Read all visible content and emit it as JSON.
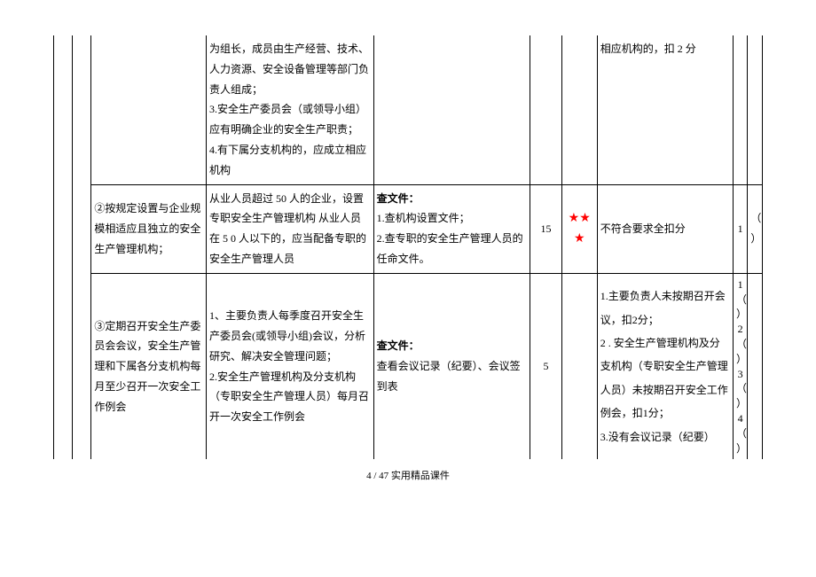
{
  "rows": [
    {
      "item": "",
      "detail": "为组长，成员由生产经营、技术、人力资源、安全设备管理等部门负责人组成；\n3.安全生产委员会（或领导小组）应有明确企业的安全生产职责；\n4.有下属分支机构的，应成立相应机构",
      "check": "",
      "score": "",
      "stars": "",
      "deduct": "相应机构的，扣 2 分",
      "results": [
        "",
        "",
        "",
        ""
      ]
    },
    {
      "item": "②按规定设置与企业规模相适应且独立的安全生产管理机构；",
      "detail": "从业人员超过 50 人的企业，设置专职安全生产管理机构 从业人员在 5 0 人以下的，应当配备专职的安全生产管理人员",
      "check": "查文件：\n1.查机构设置文件；\n2.查专职的安全生产管理人员的任命文件。",
      "score": "15",
      "stars": "★★★",
      "deduct": "不符合要求全扣分",
      "results": [
        "1",
        "（  ）",
        "",
        ""
      ]
    },
    {
      "item": "③定期召开安全生产委员会会议，安全生产管理和下属各分支机构每月至少召开一次安全工作例会",
      "detail": "1、主要负责人每季度召开安全生产委员会(或领导小组)会议，分析研究、解决安全管理问题；\n2.安全生产管理机构及分支机构（专职安全生产管理人员）每月召开一次安全工作例会",
      "check": "查文件：\n查看会议记录（纪要）、会议签到表",
      "score": "5",
      "stars": "",
      "deduct": "1.主要负责人未按期召开会议，扣2分；\n2 . 安全生产管理机构及分支机构（专职安全生产管理人员）未按期召开安全工作例会，扣1分；\n3.没有会议记录（纪要）",
      "results": [
        "1（  ）",
        "2（  ）",
        "3（  ）",
        "4（  ）"
      ]
    }
  ],
  "footer": "4 / 47 实用精品课件"
}
